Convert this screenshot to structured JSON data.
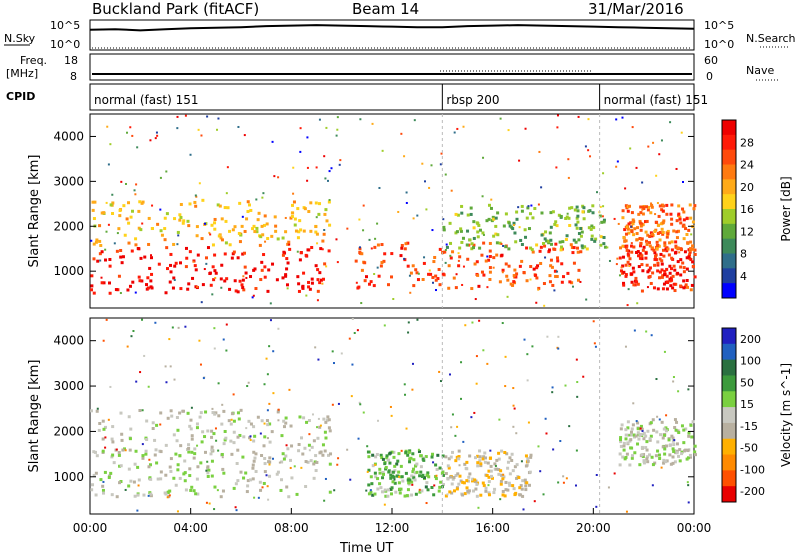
{
  "header": {
    "station": "Buckland Park (fitACF)",
    "beam": "Beam 14",
    "date": "31/Mar/2016"
  },
  "strip_labels": {
    "nsky": "N.Sky",
    "nsearch": "N.Search",
    "freq_line1": "Freq.",
    "freq_line2": "[MHz]",
    "nave": "Nave",
    "cpid": "CPID"
  },
  "strip_ticks": {
    "noise_top": "10^5",
    "noise_bottom": "10^0",
    "freq_top": "18",
    "freq_bottom": "8",
    "nave_top": "60",
    "nave_bottom": "0"
  },
  "cpid_segments": [
    {
      "label": "normal (fast) 151",
      "start_hour": 0
    },
    {
      "label": "rbsp 200",
      "start_hour": 14
    },
    {
      "label": "normal (fast) 151",
      "start_hour": 20.25
    }
  ],
  "colors": {
    "power_scale": [
      "#0000ff",
      "#1f3fa0",
      "#2f6e8a",
      "#3d8a5a",
      "#5fa93a",
      "#9fcd2a",
      "#ffd21a",
      "#ffaa18",
      "#ff7a10",
      "#ff4a0c",
      "#ff1a08",
      "#ee0000"
    ],
    "velocity_scale": [
      "#2020c0",
      "#2060c0",
      "#2a7040",
      "#3c9a3c",
      "#7ad040",
      "#c8c8c0",
      "#b8b0a0",
      "#ffb000",
      "#ff8a00",
      "#ff5000",
      "#e80000"
    ]
  },
  "chart_data": [
    {
      "type": "heatmap",
      "name": "Power panel",
      "xlabel": "Time UT",
      "ylabel": "Slant Range [km]",
      "x_ticks": [
        "00:00",
        "04:00",
        "08:00",
        "12:00",
        "16:00",
        "20:00",
        "00:00"
      ],
      "y_ticks": [
        "1000",
        "2000",
        "3000",
        "4000"
      ],
      "xlim_hours": [
        0,
        24
      ],
      "ylim_km": [
        180,
        4500
      ],
      "colorbar": {
        "label": "Power [dB]",
        "ticks": [
          "4",
          "8",
          "12",
          "16",
          "20",
          "24",
          "28"
        ],
        "range": [
          0,
          30
        ]
      },
      "echo_bands_km": [
        {
          "from_hour": 0,
          "to_hour": 9.5,
          "center_km": 1050,
          "value_db": 28
        },
        {
          "from_hour": 0,
          "to_hour": 9.5,
          "center_km": 2100,
          "value_db": 18
        },
        {
          "from_hour": 10.5,
          "to_hour": 19.5,
          "center_km": 1150,
          "value_db": 24
        },
        {
          "from_hour": 14,
          "to_hour": 20.5,
          "center_km": 2000,
          "value_db": 12
        },
        {
          "from_hour": 21,
          "to_hour": 24,
          "center_km": 1100,
          "value_db": 26
        },
        {
          "from_hour": 21,
          "to_hour": 24,
          "center_km": 2000,
          "value_db": 22
        }
      ]
    },
    {
      "type": "heatmap",
      "name": "Velocity panel",
      "xlabel": "Time UT",
      "ylabel": "Slant Range [km]",
      "x_ticks": [
        "00:00",
        "04:00",
        "08:00",
        "12:00",
        "16:00",
        "20:00",
        "00:00"
      ],
      "y_ticks": [
        "1000",
        "2000",
        "3000",
        "4000"
      ],
      "xlim_hours": [
        0,
        24
      ],
      "ylim_km": [
        180,
        4500
      ],
      "colorbar": {
        "label": "Velocity [m s^-1]",
        "ticks": [
          "200",
          "100",
          "50",
          "15",
          "-15",
          "-50",
          "-100",
          "-200"
        ],
        "range": [
          -250,
          250
        ]
      },
      "echo_bands_km": [
        {
          "from_hour": 0,
          "to_hour": 9.5,
          "center_km": 1100,
          "value_ms": 0
        },
        {
          "from_hour": 0,
          "to_hour": 9.5,
          "center_km": 2000,
          "value_ms": 0
        },
        {
          "from_hour": 11,
          "to_hour": 14,
          "center_km": 1100,
          "value_ms": 60
        },
        {
          "from_hour": 14,
          "to_hour": 17.5,
          "center_km": 1100,
          "value_ms": -40
        },
        {
          "from_hour": 21,
          "to_hour": 24,
          "center_km": 1800,
          "value_ms": 0
        }
      ]
    }
  ],
  "noise_series": {
    "name": "N.Sky",
    "hours": [
      0,
      1,
      2,
      3,
      4,
      5,
      6,
      7,
      8,
      9,
      10,
      11,
      12,
      13,
      14,
      15,
      16,
      17,
      18,
      19,
      20,
      21,
      22,
      23,
      24
    ],
    "log_values": [
      3.5,
      3.6,
      3.4,
      3.6,
      3.8,
      3.9,
      4.0,
      4.2,
      4.3,
      4.4,
      4.3,
      4.2,
      4.1,
      4.0,
      4.0,
      4.2,
      4.3,
      4.4,
      4.3,
      4.2,
      4.1,
      4.0,
      3.9,
      3.8,
      3.7
    ]
  }
}
